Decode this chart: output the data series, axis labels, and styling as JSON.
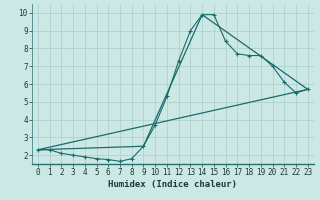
{
  "title": "",
  "xlabel": "Humidex (Indice chaleur)",
  "bg_color": "#cce8e4",
  "grid_color": "#aacfcb",
  "line_color": "#1a6b6b",
  "xlim": [
    -0.5,
    23.5
  ],
  "ylim": [
    1.5,
    10.5
  ],
  "xticks": [
    0,
    1,
    2,
    3,
    4,
    5,
    6,
    7,
    8,
    9,
    10,
    11,
    12,
    13,
    14,
    15,
    16,
    17,
    18,
    19,
    20,
    21,
    22,
    23
  ],
  "yticks": [
    2,
    3,
    4,
    5,
    6,
    7,
    8,
    9,
    10
  ],
  "series1_x": [
    0,
    1,
    2,
    3,
    4,
    5,
    6,
    7,
    8,
    9,
    10,
    11,
    12,
    13,
    14,
    15,
    16,
    17,
    18,
    19,
    20,
    21,
    22,
    23
  ],
  "series1_y": [
    2.3,
    2.3,
    2.1,
    2.0,
    1.9,
    1.8,
    1.75,
    1.65,
    1.8,
    2.5,
    3.7,
    5.3,
    7.3,
    9.0,
    9.9,
    9.9,
    8.4,
    7.7,
    7.6,
    7.6,
    7.0,
    6.1,
    5.5,
    5.7
  ],
  "series2_x": [
    0,
    23
  ],
  "series2_y": [
    2.3,
    5.7
  ],
  "series3_x": [
    0,
    9,
    14,
    23
  ],
  "series3_y": [
    2.3,
    2.5,
    9.9,
    5.7
  ]
}
